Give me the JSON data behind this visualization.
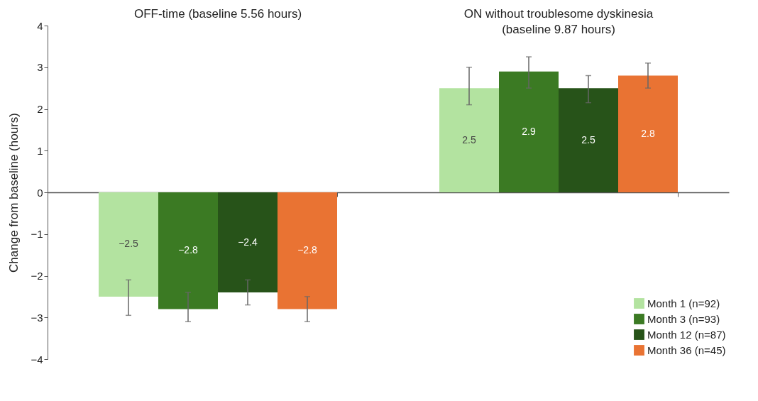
{
  "chart_data": {
    "type": "bar",
    "ylabel": "Change from baseline (hours)",
    "categories": [
      "OFF-time (baseline 5.56 hours)",
      "ON without troublesome dyskinesia\n(baseline 9.87 hours)"
    ],
    "series": [
      {
        "name": "Month 1 (n=92)",
        "color": "#b3e3a0",
        "values": [
          -2.5,
          2.5
        ],
        "errors": [
          [
            -2.95,
            -2.1
          ],
          [
            2.1,
            3.0
          ]
        ]
      },
      {
        "name": "Month 3 (n=93)",
        "color": "#3b7a23",
        "values": [
          -2.8,
          2.9
        ],
        "errors": [
          [
            -3.1,
            -2.4
          ],
          [
            2.5,
            3.25
          ]
        ]
      },
      {
        "name": "Month 12 (n=87)",
        "color": "#275319",
        "values": [
          -2.4,
          2.5
        ],
        "errors": [
          [
            -2.7,
            -2.1
          ],
          [
            2.15,
            2.8
          ]
        ]
      },
      {
        "name": "Month 36 (n=45)",
        "color": "#e97333",
        "values": [
          -2.8,
          2.8
        ],
        "errors": [
          [
            -3.1,
            -2.5
          ],
          [
            2.5,
            3.1
          ]
        ]
      }
    ],
    "ylim": [
      -4,
      4
    ],
    "yticks": [
      -4,
      -3,
      -2,
      -1,
      0,
      1,
      2,
      3,
      4
    ],
    "data_labels": true,
    "legend": "bottom right"
  }
}
